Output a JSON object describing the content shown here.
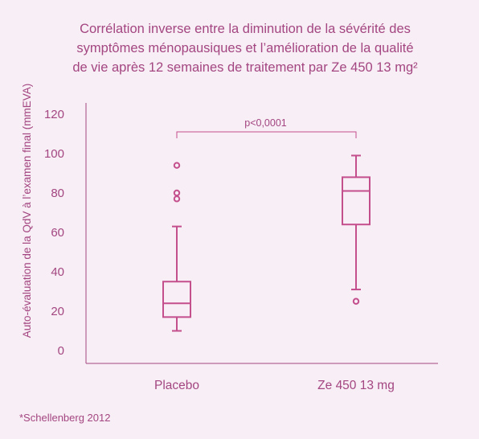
{
  "chart_data": {
    "type": "box",
    "title_lines": [
      "Corrélation inverse entre la diminution de la sévérité des",
      "symptômes ménopausiques et l’amélioration de la qualité",
      "de vie après 12 semaines de traitement par Ze 450 13 mg²"
    ],
    "ylabel": "Auto-évaluation de la QdV à l’examen final (mmEVA)",
    "xlabel": "",
    "ylim": [
      0,
      120
    ],
    "yticks": [
      0,
      20,
      40,
      60,
      80,
      100,
      120
    ],
    "categories": [
      "Placebo",
      "Ze 450 13 mg"
    ],
    "boxes": [
      {
        "name": "Placebo",
        "whisker_low": 10,
        "q1": 17,
        "median": 24,
        "q3": 35,
        "whisker_high": 63,
        "outliers": [
          77,
          80,
          94
        ]
      },
      {
        "name": "Ze 450 13 mg",
        "whisker_low": 31,
        "q1": 64,
        "median": 81,
        "q3": 88,
        "whisker_high": 99,
        "outliers": [
          25
        ]
      }
    ],
    "annotation": "p<0,0001",
    "grid": false,
    "color": "#c44f8d"
  },
  "footnote": "*Schellenberg 2012"
}
